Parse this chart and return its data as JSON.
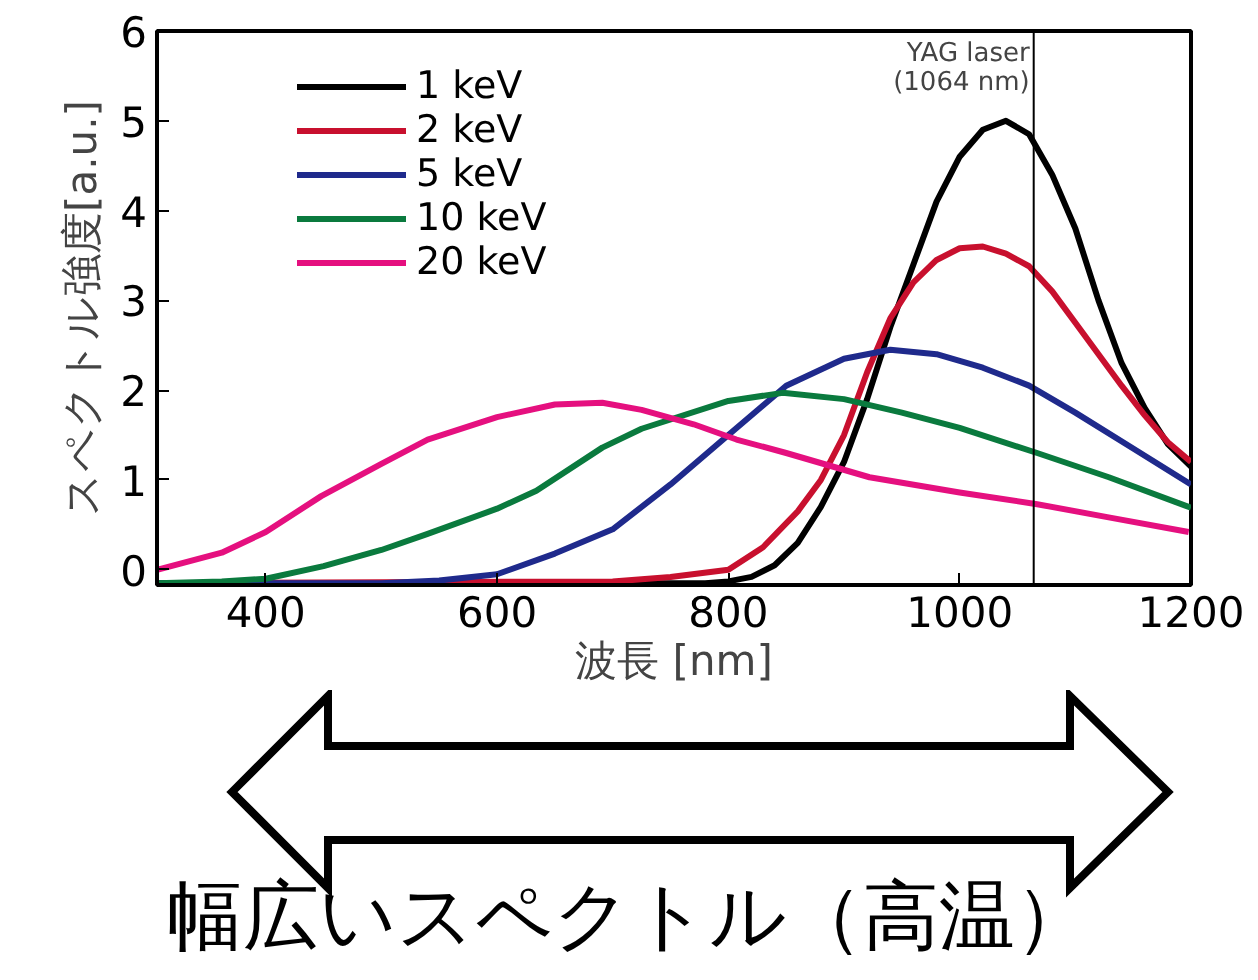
{
  "chart_data": {
    "type": "line",
    "xlabel": "波長 [nm]",
    "ylabel": "スペクトル強度[a.u.]",
    "xlim": [
      306,
      1200
    ],
    "ylim": [
      -0.17,
      6
    ],
    "xticks": [
      400,
      600,
      800,
      1000,
      1200
    ],
    "yticks": [
      0,
      1,
      2,
      3,
      4,
      5,
      6
    ],
    "grid": false,
    "legend": "top left",
    "marker": "none",
    "line_style": "solid",
    "series": [
      {
        "name": "1 keV",
        "color": "#000000",
        "x": [
          306,
          500,
          700,
          780,
          800,
          820,
          840,
          860,
          880,
          900,
          920,
          940,
          960,
          980,
          1000,
          1020,
          1040,
          1060,
          1080,
          1100,
          1120,
          1140,
          1160,
          1180,
          1200
        ],
        "values": [
          -0.15,
          -0.15,
          -0.15,
          -0.15,
          -0.13,
          -0.08,
          0.05,
          0.3,
          0.7,
          1.2,
          1.9,
          2.7,
          3.4,
          4.1,
          4.6,
          4.9,
          5.0,
          4.85,
          4.4,
          3.8,
          3.0,
          2.3,
          1.8,
          1.4,
          1.15
        ]
      },
      {
        "name": "2 keV",
        "color": "#c8102e",
        "x": [
          306,
          700,
          750,
          800,
          830,
          860,
          880,
          900,
          920,
          940,
          960,
          980,
          1000,
          1020,
          1040,
          1060,
          1080,
          1100,
          1120,
          1140,
          1160,
          1180,
          1200
        ],
        "values": [
          -0.15,
          -0.13,
          -0.08,
          0.0,
          0.25,
          0.65,
          1.0,
          1.5,
          2.2,
          2.8,
          3.2,
          3.45,
          3.58,
          3.6,
          3.52,
          3.38,
          3.1,
          2.75,
          2.4,
          2.05,
          1.72,
          1.42,
          1.2
        ]
      },
      {
        "name": "5 keV",
        "color": "#1f2a8c",
        "x": [
          306,
          450,
          500,
          550,
          600,
          650,
          700,
          750,
          800,
          850,
          900,
          940,
          980,
          1020,
          1060,
          1100,
          1150,
          1200
        ],
        "values": [
          -0.15,
          -0.15,
          -0.15,
          -0.12,
          -0.05,
          0.18,
          0.45,
          0.95,
          1.5,
          2.05,
          2.35,
          2.45,
          2.4,
          2.25,
          2.05,
          1.75,
          1.35,
          0.95
        ]
      },
      {
        "name": "10 keV",
        "color": "#0a7a3e",
        "x": [
          306,
          362,
          400,
          450,
          500,
          540,
          600,
          634,
          691,
          725,
          800,
          847,
          900,
          950,
          1000,
          1067,
          1129,
          1200
        ],
        "values": [
          -0.15,
          -0.13,
          -0.1,
          0.04,
          0.22,
          0.4,
          0.68,
          0.88,
          1.36,
          1.57,
          1.88,
          1.97,
          1.9,
          1.75,
          1.58,
          1.3,
          1.03,
          0.69
        ]
      },
      {
        "name": "20 keV",
        "color": "#e5107f",
        "x": [
          306,
          362,
          400,
          448,
          500,
          540,
          600,
          650,
          691,
          725,
          770,
          807,
          850,
          922,
          1000,
          1067,
          1130,
          1198
        ],
        "values": [
          0.0,
          0.19,
          0.42,
          0.82,
          1.18,
          1.45,
          1.7,
          1.84,
          1.86,
          1.78,
          1.62,
          1.45,
          1.3,
          1.03,
          0.86,
          0.73,
          0.58,
          0.42
        ]
      }
    ],
    "ref_lines": [
      {
        "axis": "x",
        "value": 1064,
        "label": "YAG laser\n(1064 nm)",
        "color": "#000000"
      }
    ],
    "annotations": [
      "幅広いスペクトル（高温）"
    ]
  }
}
